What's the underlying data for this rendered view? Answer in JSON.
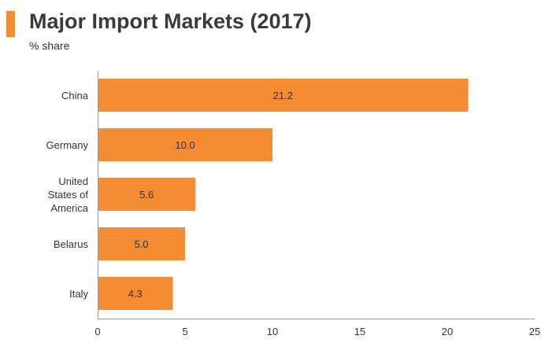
{
  "chart_data": {
    "type": "bar",
    "orientation": "horizontal",
    "title": "Major Import Markets (2017)",
    "subtitle": "% share",
    "categories": [
      [
        "China"
      ],
      [
        "Germany"
      ],
      [
        "United",
        "States of",
        "America"
      ],
      [
        "Belarus"
      ],
      [
        "Italy"
      ]
    ],
    "values": [
      21.2,
      10.0,
      5.6,
      5.0,
      4.3
    ],
    "data_labels": [
      "21.2",
      "10.0",
      "5.6",
      "5.0",
      "4.3"
    ],
    "xlim": [
      0,
      25
    ],
    "x_ticks": [
      0,
      5,
      10,
      15,
      20,
      25
    ],
    "x_tick_labels": [
      "0",
      "5",
      "10",
      "15",
      "20",
      "25"
    ],
    "xlabel": "",
    "ylabel": "",
    "grid": false,
    "bar_color": "#f58b33",
    "accent_color": "#f58b33"
  }
}
